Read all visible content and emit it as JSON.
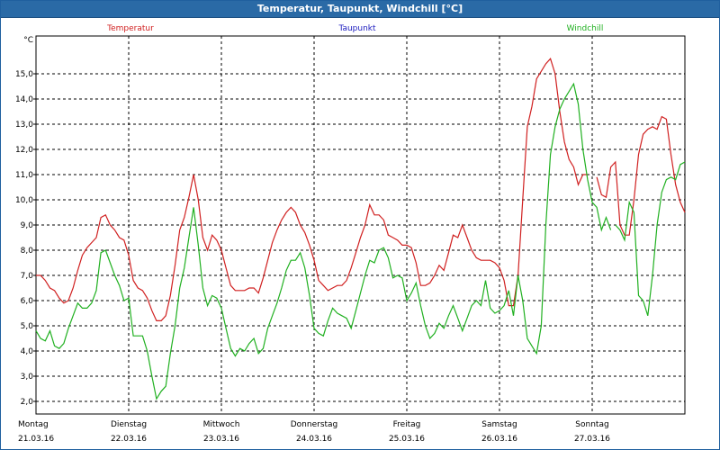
{
  "window": {
    "title": "Temperatur, Taupunkt, Windchill [°C]"
  },
  "chart_data": {
    "type": "line",
    "title": "Temperatur, Taupunkt, Windchill [°C]",
    "ylabel": "°C",
    "ylim": [
      1.5,
      16.5
    ],
    "y_ticks": [
      "2,0",
      "3,0",
      "4,0",
      "5,0",
      "6,0",
      "7,0",
      "8,0",
      "9,0",
      "10,0",
      "11,0",
      "12,0",
      "13,0",
      "14,0",
      "15,0"
    ],
    "y_tick_values": [
      2,
      3,
      4,
      5,
      6,
      7,
      8,
      9,
      10,
      11,
      12,
      13,
      14,
      15
    ],
    "xlim": [
      0,
      7
    ],
    "x_day_labels": [
      {
        "day": "Montag",
        "date": "21.03.16"
      },
      {
        "day": "Dienstag",
        "date": "22.03.16"
      },
      {
        "day": "Mittwoch",
        "date": "23.03.16"
      },
      {
        "day": "Donnerstag",
        "date": "24.03.16"
      },
      {
        "day": "Freitag",
        "date": "25.03.16"
      },
      {
        "day": "Samstag",
        "date": "26.03.16"
      },
      {
        "day": "Sonntag",
        "date": "27.03.16"
      }
    ],
    "grid": true,
    "legend": [
      {
        "name": "Temperatur",
        "color": "#d02020"
      },
      {
        "name": "Taupunkt",
        "color": "#2020c0"
      },
      {
        "name": "Windchill",
        "color": "#20b020"
      }
    ],
    "series": [
      {
        "name": "Temperatur",
        "color": "#d02020",
        "points": [
          [
            0.0,
            7.0
          ],
          [
            0.05,
            7.0
          ],
          [
            0.1,
            6.8
          ],
          [
            0.15,
            6.5
          ],
          [
            0.2,
            6.4
          ],
          [
            0.25,
            6.1
          ],
          [
            0.3,
            5.9
          ],
          [
            0.35,
            6.0
          ],
          [
            0.4,
            6.5
          ],
          [
            0.45,
            7.2
          ],
          [
            0.5,
            7.8
          ],
          [
            0.55,
            8.1
          ],
          [
            0.6,
            8.3
          ],
          [
            0.65,
            8.5
          ],
          [
            0.7,
            9.3
          ],
          [
            0.75,
            9.4
          ],
          [
            0.8,
            9.0
          ],
          [
            0.85,
            8.8
          ],
          [
            0.9,
            8.5
          ],
          [
            0.95,
            8.4
          ],
          [
            1.0,
            7.8
          ],
          [
            1.05,
            6.8
          ],
          [
            1.1,
            6.5
          ],
          [
            1.15,
            6.4
          ],
          [
            1.2,
            6.1
          ],
          [
            1.25,
            5.6
          ],
          [
            1.3,
            5.2
          ],
          [
            1.35,
            5.2
          ],
          [
            1.4,
            5.4
          ],
          [
            1.45,
            6.2
          ],
          [
            1.5,
            7.4
          ],
          [
            1.55,
            8.8
          ],
          [
            1.6,
            9.3
          ],
          [
            1.65,
            10.1
          ],
          [
            1.7,
            11.0
          ],
          [
            1.75,
            10.0
          ],
          [
            1.8,
            8.5
          ],
          [
            1.85,
            8.0
          ],
          [
            1.9,
            8.6
          ],
          [
            1.95,
            8.4
          ],
          [
            2.0,
            8.0
          ],
          [
            2.05,
            7.3
          ],
          [
            2.1,
            6.6
          ],
          [
            2.15,
            6.4
          ],
          [
            2.2,
            6.4
          ],
          [
            2.25,
            6.4
          ],
          [
            2.3,
            6.5
          ],
          [
            2.35,
            6.5
          ],
          [
            2.4,
            6.3
          ],
          [
            2.45,
            6.9
          ],
          [
            2.5,
            7.6
          ],
          [
            2.55,
            8.3
          ],
          [
            2.6,
            8.8
          ],
          [
            2.65,
            9.2
          ],
          [
            2.7,
            9.5
          ],
          [
            2.75,
            9.7
          ],
          [
            2.8,
            9.5
          ],
          [
            2.85,
            9.0
          ],
          [
            2.9,
            8.7
          ],
          [
            2.95,
            8.2
          ],
          [
            3.0,
            7.6
          ],
          [
            3.05,
            6.8
          ],
          [
            3.1,
            6.6
          ],
          [
            3.15,
            6.4
          ],
          [
            3.2,
            6.5
          ],
          [
            3.25,
            6.6
          ],
          [
            3.3,
            6.6
          ],
          [
            3.35,
            6.8
          ],
          [
            3.4,
            7.3
          ],
          [
            3.45,
            7.9
          ],
          [
            3.5,
            8.5
          ],
          [
            3.55,
            9.0
          ],
          [
            3.6,
            9.8
          ],
          [
            3.65,
            9.4
          ],
          [
            3.7,
            9.4
          ],
          [
            3.75,
            9.2
          ],
          [
            3.8,
            8.6
          ],
          [
            3.85,
            8.5
          ],
          [
            3.9,
            8.4
          ],
          [
            3.95,
            8.2
          ],
          [
            4.0,
            8.2
          ],
          [
            4.05,
            8.1
          ],
          [
            4.1,
            7.5
          ],
          [
            4.15,
            6.6
          ],
          [
            4.2,
            6.6
          ],
          [
            4.25,
            6.7
          ],
          [
            4.3,
            7.0
          ],
          [
            4.35,
            7.4
          ],
          [
            4.4,
            7.2
          ],
          [
            4.45,
            7.9
          ],
          [
            4.5,
            8.6
          ],
          [
            4.55,
            8.5
          ],
          [
            4.6,
            9.0
          ],
          [
            4.65,
            8.5
          ],
          [
            4.7,
            8.0
          ],
          [
            4.75,
            7.7
          ],
          [
            4.8,
            7.6
          ],
          [
            4.85,
            7.6
          ],
          [
            4.9,
            7.6
          ],
          [
            4.95,
            7.5
          ],
          [
            5.0,
            7.3
          ],
          [
            5.05,
            6.8
          ],
          [
            5.1,
            5.8
          ],
          [
            5.15,
            5.8
          ],
          [
            5.2,
            7.0
          ],
          [
            5.25,
            10.0
          ],
          [
            5.3,
            12.9
          ],
          [
            5.35,
            13.7
          ],
          [
            5.4,
            14.8
          ],
          [
            5.45,
            15.1
          ],
          [
            5.5,
            15.4
          ],
          [
            5.55,
            15.6
          ],
          [
            5.6,
            15.0
          ],
          [
            5.65,
            13.5
          ],
          [
            5.7,
            12.3
          ],
          [
            5.75,
            11.6
          ],
          [
            5.8,
            11.3
          ],
          [
            5.85,
            10.6
          ],
          [
            5.9,
            11.0
          ],
          [
            5.95,
            11.0
          ],
          [
            5.98,
            null
          ],
          [
            6.05,
            10.9
          ],
          [
            6.1,
            10.2
          ],
          [
            6.15,
            10.1
          ],
          [
            6.2,
            11.3
          ],
          [
            6.25,
            11.5
          ],
          [
            6.3,
            9.0
          ],
          [
            6.35,
            8.6
          ],
          [
            6.4,
            8.6
          ],
          [
            6.45,
            10.0
          ],
          [
            6.5,
            11.8
          ],
          [
            6.55,
            12.6
          ],
          [
            6.6,
            12.8
          ],
          [
            6.65,
            12.9
          ],
          [
            6.7,
            12.8
          ],
          [
            6.75,
            13.3
          ],
          [
            6.8,
            13.2
          ],
          [
            6.85,
            11.8
          ],
          [
            6.9,
            10.6
          ],
          [
            6.95,
            9.9
          ],
          [
            7.0,
            9.5
          ]
        ]
      },
      {
        "name": "Windchill",
        "color": "#20b020",
        "points": [
          [
            0.0,
            4.8
          ],
          [
            0.05,
            4.5
          ],
          [
            0.1,
            4.4
          ],
          [
            0.15,
            4.8
          ],
          [
            0.2,
            4.2
          ],
          [
            0.25,
            4.1
          ],
          [
            0.3,
            4.3
          ],
          [
            0.35,
            4.9
          ],
          [
            0.4,
            5.4
          ],
          [
            0.45,
            5.9
          ],
          [
            0.5,
            5.7
          ],
          [
            0.55,
            5.7
          ],
          [
            0.6,
            5.9
          ],
          [
            0.65,
            6.4
          ],
          [
            0.7,
            7.9
          ],
          [
            0.75,
            8.0
          ],
          [
            0.8,
            7.5
          ],
          [
            0.85,
            7.0
          ],
          [
            0.9,
            6.6
          ],
          [
            0.95,
            6.0
          ],
          [
            1.0,
            6.1
          ],
          [
            1.05,
            4.6
          ],
          [
            1.1,
            4.6
          ],
          [
            1.15,
            4.6
          ],
          [
            1.2,
            4.0
          ],
          [
            1.25,
            3.0
          ],
          [
            1.3,
            2.1
          ],
          [
            1.35,
            2.4
          ],
          [
            1.4,
            2.6
          ],
          [
            1.45,
            3.9
          ],
          [
            1.5,
            5.0
          ],
          [
            1.55,
            6.5
          ],
          [
            1.6,
            7.3
          ],
          [
            1.65,
            8.5
          ],
          [
            1.7,
            9.7
          ],
          [
            1.75,
            8.2
          ],
          [
            1.8,
            6.5
          ],
          [
            1.85,
            5.8
          ],
          [
            1.9,
            6.2
          ],
          [
            1.95,
            6.1
          ],
          [
            2.0,
            5.7
          ],
          [
            2.05,
            4.9
          ],
          [
            2.1,
            4.1
          ],
          [
            2.15,
            3.8
          ],
          [
            2.2,
            4.1
          ],
          [
            2.25,
            4.0
          ],
          [
            2.3,
            4.3
          ],
          [
            2.35,
            4.5
          ],
          [
            2.4,
            3.9
          ],
          [
            2.45,
            4.1
          ],
          [
            2.5,
            4.9
          ],
          [
            2.55,
            5.4
          ],
          [
            2.6,
            5.9
          ],
          [
            2.65,
            6.5
          ],
          [
            2.7,
            7.2
          ],
          [
            2.75,
            7.6
          ],
          [
            2.8,
            7.6
          ],
          [
            2.85,
            7.9
          ],
          [
            2.9,
            7.3
          ],
          [
            2.95,
            6.2
          ],
          [
            3.0,
            4.9
          ],
          [
            3.05,
            4.7
          ],
          [
            3.1,
            4.6
          ],
          [
            3.15,
            5.2
          ],
          [
            3.2,
            5.7
          ],
          [
            3.25,
            5.5
          ],
          [
            3.3,
            5.4
          ],
          [
            3.35,
            5.3
          ],
          [
            3.4,
            4.9
          ],
          [
            3.45,
            5.6
          ],
          [
            3.5,
            6.3
          ],
          [
            3.55,
            7.0
          ],
          [
            3.6,
            7.6
          ],
          [
            3.65,
            7.5
          ],
          [
            3.7,
            8.0
          ],
          [
            3.75,
            8.1
          ],
          [
            3.8,
            7.7
          ],
          [
            3.85,
            6.9
          ],
          [
            3.9,
            7.0
          ],
          [
            3.95,
            6.9
          ],
          [
            4.0,
            6.0
          ],
          [
            4.05,
            6.3
          ],
          [
            4.1,
            6.7
          ],
          [
            4.15,
            5.8
          ],
          [
            4.2,
            5.0
          ],
          [
            4.25,
            4.5
          ],
          [
            4.3,
            4.7
          ],
          [
            4.35,
            5.1
          ],
          [
            4.4,
            4.9
          ],
          [
            4.45,
            5.4
          ],
          [
            4.5,
            5.8
          ],
          [
            4.55,
            5.3
          ],
          [
            4.6,
            4.8
          ],
          [
            4.65,
            5.3
          ],
          [
            4.7,
            5.8
          ],
          [
            4.75,
            6.0
          ],
          [
            4.8,
            5.8
          ],
          [
            4.85,
            6.8
          ],
          [
            4.9,
            5.7
          ],
          [
            4.95,
            5.5
          ],
          [
            5.0,
            5.6
          ],
          [
            5.05,
            5.8
          ],
          [
            5.1,
            6.4
          ],
          [
            5.15,
            5.4
          ],
          [
            5.2,
            7.0
          ],
          [
            5.25,
            6.0
          ],
          [
            5.3,
            4.5
          ],
          [
            5.35,
            4.2
          ],
          [
            5.4,
            3.9
          ],
          [
            5.45,
            5.0
          ],
          [
            5.5,
            9.0
          ],
          [
            5.55,
            11.8
          ],
          [
            5.6,
            12.9
          ],
          [
            5.65,
            13.6
          ],
          [
            5.7,
            14.0
          ],
          [
            5.75,
            14.3
          ],
          [
            5.8,
            14.6
          ],
          [
            5.85,
            13.8
          ],
          [
            5.9,
            12.0
          ],
          [
            5.95,
            10.8
          ],
          [
            6.0,
            9.9
          ],
          [
            6.05,
            9.7
          ],
          [
            6.1,
            8.8
          ],
          [
            6.15,
            9.3
          ],
          [
            6.2,
            8.8
          ],
          [
            6.22,
            null
          ],
          [
            6.25,
            9.0
          ],
          [
            6.3,
            8.8
          ],
          [
            6.35,
            8.4
          ],
          [
            6.4,
            9.9
          ],
          [
            6.45,
            9.5
          ],
          [
            6.5,
            6.2
          ],
          [
            6.55,
            6.0
          ],
          [
            6.6,
            5.4
          ],
          [
            6.65,
            7.0
          ],
          [
            6.7,
            9.0
          ],
          [
            6.75,
            10.3
          ],
          [
            6.8,
            10.8
          ],
          [
            6.85,
            10.9
          ],
          [
            6.9,
            10.8
          ],
          [
            6.95,
            11.4
          ],
          [
            7.0,
            11.5
          ]
        ]
      }
    ]
  }
}
